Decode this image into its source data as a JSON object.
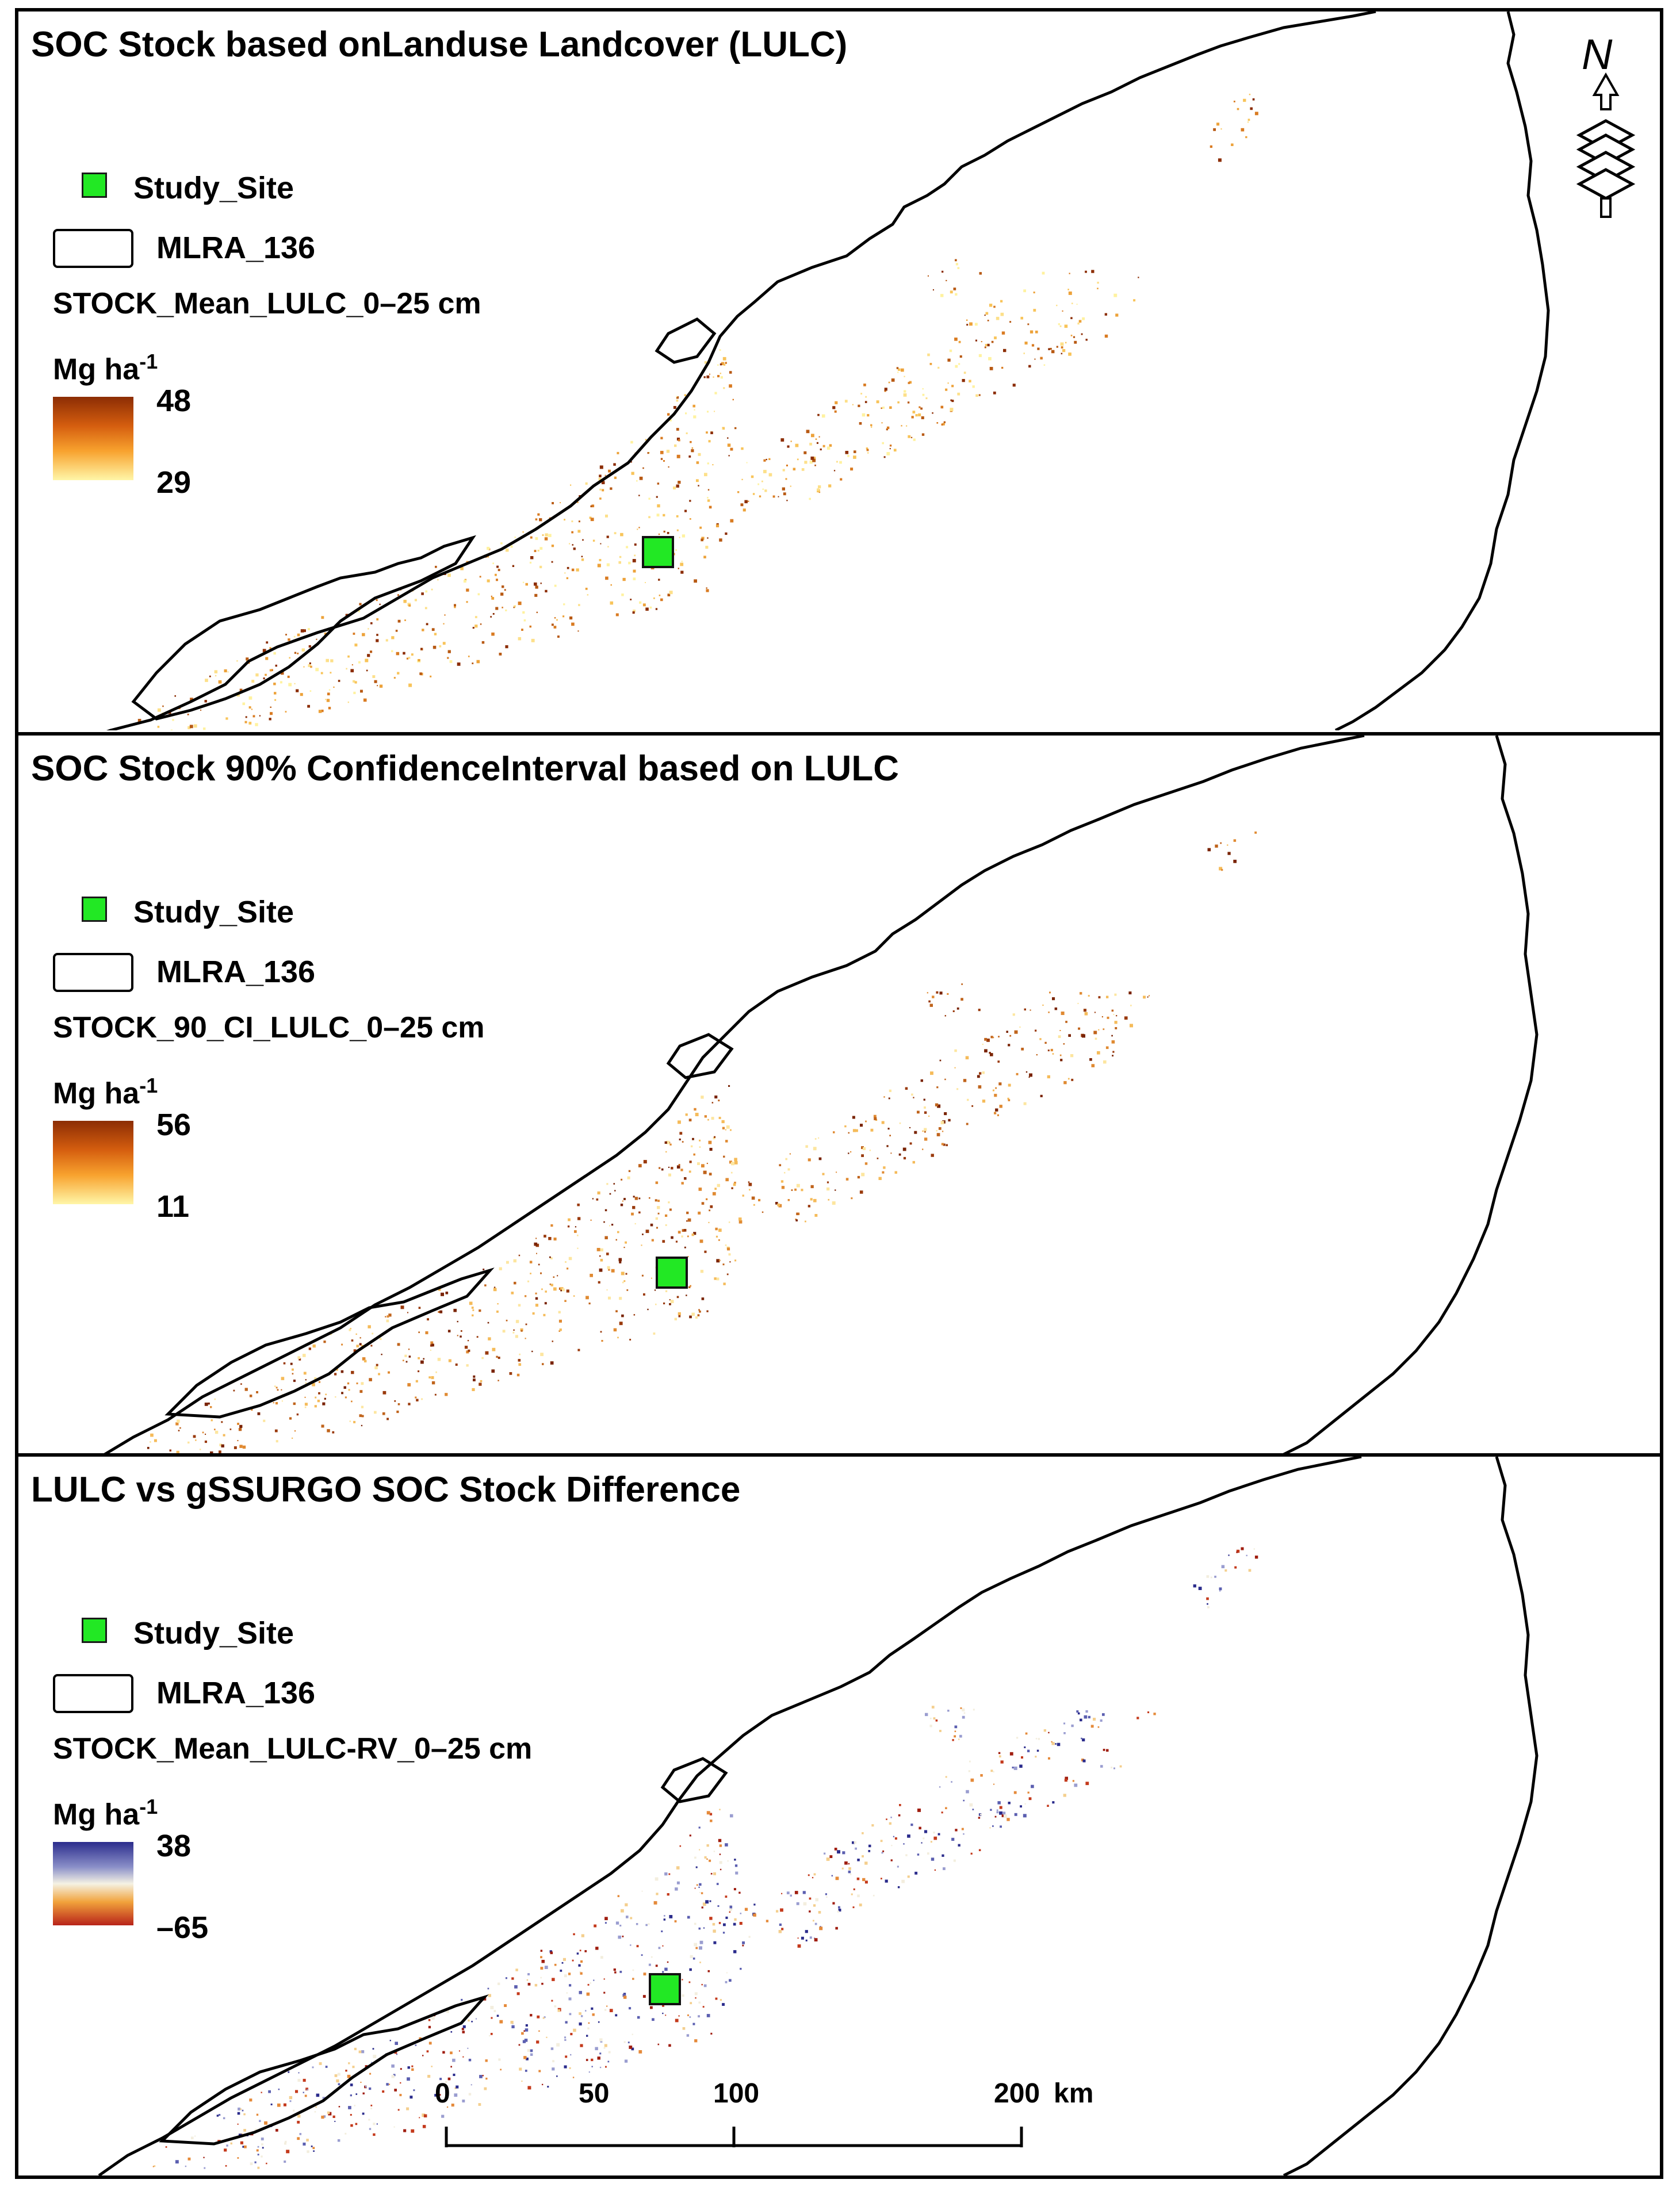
{
  "panels": [
    {
      "title": "SOC Stock based onLanduse Landcover (LULC)",
      "legend": {
        "site_label": "Study_Site",
        "boundary_label": "MLRA_136",
        "variable_label": "STOCK_Mean_LULC_0–25 cm",
        "unit": "Mg ha",
        "unit_exp": "-1",
        "max": "48",
        "min": "29",
        "ramp": "yellow-orange-brown",
        "ramp_colors": [
          "#8c2d04",
          "#d55e0f",
          "#f8a22e",
          "#fff6a8"
        ]
      }
    },
    {
      "title": "SOC Stock 90% ConfidenceInterval based on LULC",
      "legend": {
        "site_label": "Study_Site",
        "boundary_label": "MLRA_136",
        "variable_label": "STOCK_90_CI_LULC_0–25 cm",
        "unit": "Mg ha",
        "unit_exp": "-1",
        "max": "56",
        "min": "11",
        "ramp": "yellow-orange-brown",
        "ramp_colors": [
          "#8c2d04",
          "#d55e0f",
          "#f8a22e",
          "#fff6a8"
        ]
      }
    },
    {
      "title": "LULC vs gSSURGO SOC Stock Difference",
      "legend": {
        "site_label": "Study_Site",
        "boundary_label": "MLRA_136",
        "variable_label": "STOCK_Mean_LULC-RV_0–25 cm",
        "unit": "Mg ha",
        "unit_exp": "-1",
        "max": "38",
        "min": "–65",
        "ramp": "blue-white-red diverging",
        "ramp_colors": [
          "#2b2c8c",
          "#f5f2e4",
          "#b8231a"
        ]
      }
    }
  ],
  "north_arrow": {
    "letter": "N",
    "icon": "north-arrow-layers-icon"
  },
  "scale_bar": {
    "ticks": [
      "0",
      "50",
      "100",
      "200"
    ],
    "unit": "km"
  },
  "colors": {
    "study_site": "#22e824",
    "boundary": "#000000"
  }
}
